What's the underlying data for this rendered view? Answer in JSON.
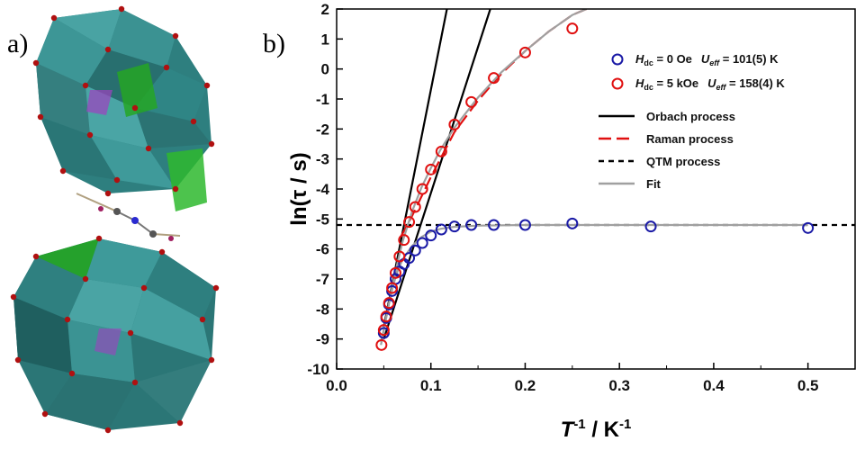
{
  "panels": {
    "a_label": "a)",
    "b_label": "b)"
  },
  "chart_data": {
    "type": "scatter",
    "title": "",
    "xlabel": "T -1 / K-1",
    "ylabel": "ln(τ / s)",
    "xlim": [
      0.0,
      0.55
    ],
    "ylim": [
      -10,
      2
    ],
    "xticks": [
      "0.0",
      "0.1",
      "0.2",
      "0.3",
      "0.4",
      "0.5"
    ],
    "yticks": [
      "-10",
      "-9",
      "-8",
      "-7",
      "-6",
      "-5",
      "-4",
      "-3",
      "-2",
      "-1",
      "0",
      "1",
      "2"
    ],
    "legend_placement": "top-right",
    "series": [
      {
        "name": "Hdc = 0 Oe  Ueff = 101(5) K",
        "legend": {
          "field": "H",
          "field_sub": "dc",
          "field_val": " = 0 Oe",
          "energy": "U",
          "energy_sub": "eff",
          "energy_val": " = 101(5) K"
        },
        "marker": "open-circle",
        "color": "#1a1aa6",
        "x": [
          0.05,
          0.0526,
          0.0556,
          0.0588,
          0.0625,
          0.0667,
          0.0714,
          0.0769,
          0.0833,
          0.0909,
          0.1,
          0.1111,
          0.125,
          0.1429,
          0.1667,
          0.2,
          0.25,
          0.3333,
          0.5
        ],
        "y": [
          -8.8,
          -8.3,
          -7.85,
          -7.4,
          -7.0,
          -6.75,
          -6.5,
          -6.3,
          -6.05,
          -5.8,
          -5.55,
          -5.35,
          -5.25,
          -5.2,
          -5.2,
          -5.2,
          -5.15,
          -5.25,
          -5.3
        ]
      },
      {
        "name": "Hdc = 5 kOe  Ueff = 158(4) K",
        "legend": {
          "field": "H",
          "field_sub": "dc",
          "field_val": " = 5 kOe",
          "energy": "U",
          "energy_sub": "eff",
          "energy_val": " = 158(4) K"
        },
        "marker": "open-circle",
        "color": "#e01010",
        "x": [
          0.0476,
          0.05,
          0.0526,
          0.0556,
          0.0588,
          0.0625,
          0.0667,
          0.0714,
          0.0769,
          0.0833,
          0.0909,
          0.1,
          0.1111,
          0.125,
          0.1429,
          0.1667,
          0.2,
          0.25
        ],
        "y": [
          -9.2,
          -8.7,
          -8.25,
          -7.8,
          -7.3,
          -6.8,
          -6.25,
          -5.7,
          -5.1,
          -4.6,
          -4.0,
          -3.35,
          -2.75,
          -1.85,
          -1.1,
          -0.3,
          0.55,
          1.35
        ]
      }
    ],
    "lines": [
      {
        "name": "Orbach process",
        "style": "solid",
        "color": "#000000",
        "x": [
          0.05,
          0.117
        ],
        "y": [
          -8.6,
          2.0
        ]
      },
      {
        "name": "Orbach process",
        "style": "solid",
        "color": "#000000",
        "x": [
          0.05,
          0.163
        ],
        "y": [
          -9.0,
          2.0
        ]
      },
      {
        "name": "Raman process",
        "style": "dashed",
        "color": "#e01010",
        "x": [
          0.068,
          0.08,
          0.1,
          0.125,
          0.15,
          0.175,
          0.2,
          0.225,
          0.25,
          0.265
        ],
        "y": [
          -5.6,
          -4.9,
          -3.6,
          -2.1,
          -1.05,
          -0.15,
          0.6,
          1.25,
          1.8,
          2.0
        ]
      },
      {
        "name": "QTM process",
        "style": "dotted",
        "color": "#000000",
        "x": [
          0.0,
          0.55
        ],
        "y": [
          -5.2,
          -5.2
        ]
      },
      {
        "name": "Fit",
        "style": "solid",
        "color": "#a0a0a0",
        "x": [
          0.047,
          0.05,
          0.055,
          0.06,
          0.065,
          0.07,
          0.08,
          0.09,
          0.1,
          0.11,
          0.125,
          0.15,
          0.175,
          0.2,
          0.225,
          0.25,
          0.265
        ],
        "y": [
          -9.2,
          -8.7,
          -7.9,
          -7.1,
          -6.4,
          -5.75,
          -4.75,
          -3.95,
          -3.3,
          -2.7,
          -1.95,
          -0.95,
          -0.1,
          0.6,
          1.25,
          1.8,
          2.0
        ]
      },
      {
        "name": "Fit",
        "style": "solid",
        "color": "#a0a0a0",
        "x": [
          0.047,
          0.05,
          0.055,
          0.06,
          0.065,
          0.07,
          0.08,
          0.09,
          0.1,
          0.11,
          0.125,
          0.15,
          0.2,
          0.3,
          0.5
        ],
        "y": [
          -9.1,
          -8.7,
          -7.9,
          -7.2,
          -6.7,
          -6.35,
          -5.9,
          -5.6,
          -5.42,
          -5.33,
          -5.26,
          -5.22,
          -5.2,
          -5.2,
          -5.2
        ]
      }
    ],
    "legend_lines": [
      {
        "label": "Orbach process",
        "style": "solid",
        "color": "#000000"
      },
      {
        "label": "Raman process",
        "style": "dashed",
        "color": "#e01010"
      },
      {
        "label": "QTM process",
        "style": "dotted",
        "color": "#000000"
      },
      {
        "label": "Fit",
        "style": "solid",
        "color": "#a0a0a0"
      }
    ]
  }
}
